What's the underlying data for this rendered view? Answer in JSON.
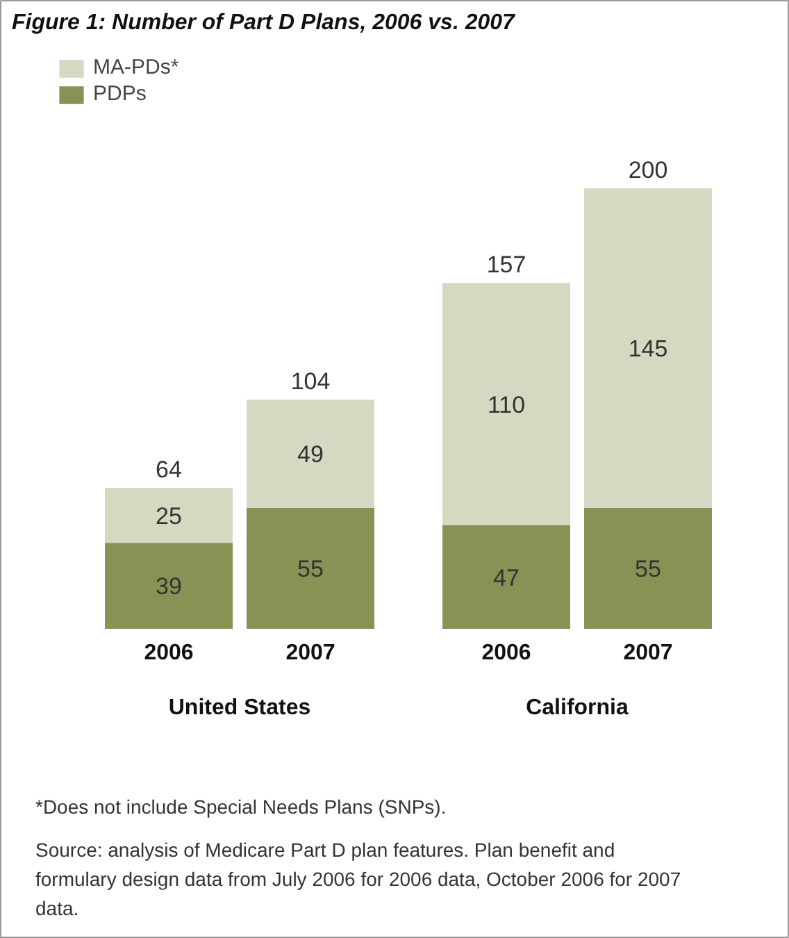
{
  "chart_data": {
    "type": "bar",
    "title": "Figure 1: Number of Part D Plans, 2006 vs. 2007",
    "categories": [
      "2006",
      "2007",
      "2006",
      "2007"
    ],
    "stacked": true,
    "series": [
      {
        "name": "PDPs",
        "color": "#8a9155",
        "values": [
          39,
          55,
          47,
          55
        ]
      },
      {
        "name": "MA-PDs*",
        "color": "#d5d9c1",
        "values": [
          25,
          49,
          110,
          145
        ]
      }
    ],
    "data_labels": true,
    "totals": [
      "64",
      "104",
      "157",
      "200"
    ],
    "legend": "top left",
    "annotations": [
      "United States",
      "California",
      "*Does not include Special Needs Plans (SNPs).",
      "Source: analysis of Medicare Part D plan features. Plan benefit and formulary design data from July 2006 for 2006 data, October 2006 for 2007 data."
    ]
  }
}
